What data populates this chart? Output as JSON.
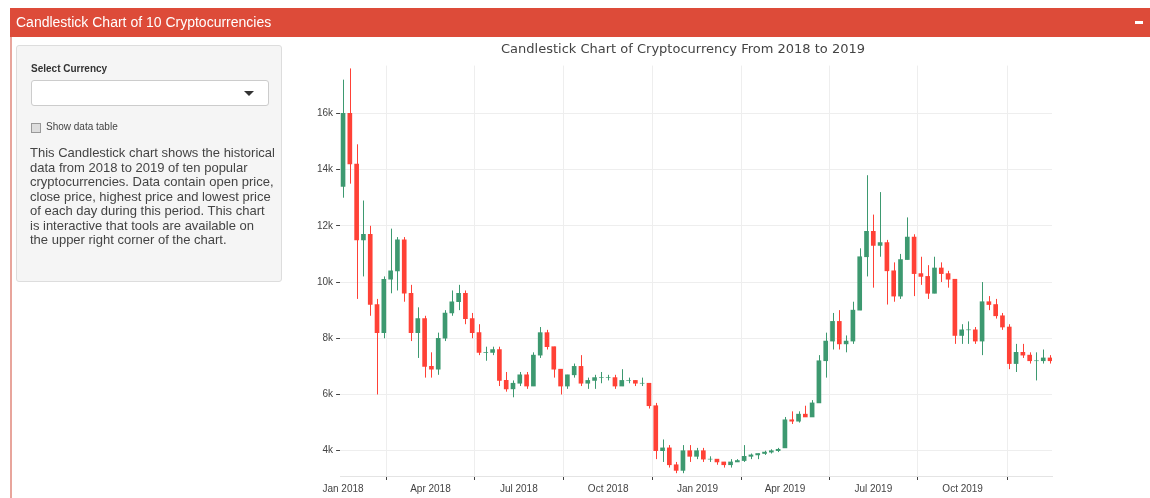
{
  "chart_data": {
    "type": "candlestick",
    "title": "Candlestick Chart of Cryptocurrency From 2018 to 2019",
    "annotations": [
      "Candlestick Chart of 10 Cryptocurrencies",
      "Select Currency",
      "Show data table",
      "This Candlestick chart shows the historical data from 2018 to 2019 of ten popular cryptocurrencies. Data contain open price, close price, highest price and lowest price of each day during this period. This chart is interactive that tools are available on the upper right corner of the chart."
    ],
    "x": [
      "2018-01-01",
      "2018-01-08",
      "2018-01-15",
      "2018-01-22",
      "2018-01-29",
      "2018-02-05",
      "2018-02-12",
      "2018-02-19",
      "2018-02-26",
      "2018-03-05",
      "2018-03-12",
      "2018-03-19",
      "2018-03-26",
      "2018-04-02",
      "2018-04-09",
      "2018-04-16",
      "2018-04-23",
      "2018-04-30",
      "2018-05-07",
      "2018-05-14",
      "2018-05-21",
      "2018-05-28",
      "2018-06-04",
      "2018-06-11",
      "2018-06-18",
      "2018-06-25",
      "2018-07-02",
      "2018-07-09",
      "2018-07-16",
      "2018-07-23",
      "2018-07-30",
      "2018-08-06",
      "2018-08-13",
      "2018-08-20",
      "2018-08-27",
      "2018-09-03",
      "2018-09-10",
      "2018-09-17",
      "2018-09-24",
      "2018-10-01",
      "2018-10-08",
      "2018-10-15",
      "2018-10-22",
      "2018-10-29",
      "2018-11-05",
      "2018-11-12",
      "2018-11-19",
      "2018-11-26",
      "2018-12-03",
      "2018-12-10",
      "2018-12-17",
      "2018-12-24",
      "2018-12-31",
      "2019-01-07",
      "2019-01-14",
      "2019-01-21",
      "2019-01-28",
      "2019-02-04",
      "2019-02-11",
      "2019-02-18",
      "2019-02-25",
      "2019-03-04",
      "2019-03-11",
      "2019-03-18",
      "2019-03-25",
      "2019-04-01",
      "2019-04-08",
      "2019-04-15",
      "2019-04-22",
      "2019-04-29",
      "2019-05-06",
      "2019-05-13",
      "2019-05-20",
      "2019-05-27",
      "2019-06-03",
      "2019-06-10",
      "2019-06-17",
      "2019-06-24",
      "2019-07-01",
      "2019-07-08",
      "2019-07-15",
      "2019-07-22",
      "2019-07-29",
      "2019-08-05",
      "2019-08-12",
      "2019-08-19",
      "2019-08-26",
      "2019-09-02",
      "2019-09-09",
      "2019-09-16",
      "2019-09-23",
      "2019-09-30",
      "2019-10-07",
      "2019-10-14",
      "2019-10-21",
      "2019-10-28",
      "2019-11-04",
      "2019-11-11",
      "2019-11-18",
      "2019-11-25",
      "2019-12-02",
      "2019-12-09",
      "2019-12-16",
      "2019-12-23",
      "2019-12-30"
    ],
    "ohlc": [
      [
        13400,
        17200,
        13000,
        16000
      ],
      [
        16000,
        17600,
        13500,
        14200
      ],
      [
        14200,
        14900,
        9400,
        11500
      ],
      [
        11500,
        12900,
        10200,
        11700
      ],
      [
        11700,
        12000,
        8800,
        9200
      ],
      [
        9200,
        9400,
        6000,
        8200
      ],
      [
        8200,
        10200,
        8000,
        10100
      ],
      [
        10100,
        11900,
        9600,
        10400
      ],
      [
        10400,
        11600,
        9700,
        11500
      ],
      [
        11500,
        11600,
        9300,
        9600
      ],
      [
        9600,
        9900,
        7900,
        8200
      ],
      [
        8200,
        9100,
        7300,
        8700
      ],
      [
        8700,
        8800,
        6600,
        7000
      ],
      [
        7000,
        7500,
        6600,
        6900
      ],
      [
        6900,
        8200,
        6700,
        8000
      ],
      [
        8000,
        9000,
        7900,
        8900
      ],
      [
        8900,
        9700,
        8800,
        9300
      ],
      [
        9300,
        9900,
        9000,
        9600
      ],
      [
        9600,
        9700,
        8500,
        8700
      ],
      [
        8700,
        8900,
        8000,
        8200
      ],
      [
        8200,
        8500,
        7400,
        7500
      ],
      [
        7500,
        7700,
        7200,
        7500
      ],
      [
        7500,
        7700,
        7400,
        7600
      ],
      [
        7600,
        7700,
        6300,
        6500
      ],
      [
        6500,
        6800,
        6100,
        6200
      ],
      [
        6200,
        6500,
        5900,
        6400
      ],
      [
        6400,
        6800,
        6300,
        6700
      ],
      [
        6700,
        6800,
        6200,
        6300
      ],
      [
        6300,
        7500,
        6300,
        7400
      ],
      [
        7400,
        8400,
        7300,
        8200
      ],
      [
        8200,
        8300,
        7600,
        7700
      ],
      [
        7700,
        7700,
        6600,
        6900
      ],
      [
        6900,
        6900,
        6000,
        6300
      ],
      [
        6300,
        6700,
        6200,
        6700
      ],
      [
        6700,
        7100,
        6600,
        7000
      ],
      [
        7000,
        7400,
        6300,
        6400
      ],
      [
        6400,
        6600,
        6200,
        6500
      ],
      [
        6500,
        6700,
        6200,
        6600
      ],
      [
        6600,
        6800,
        6400,
        6600
      ],
      [
        6600,
        6700,
        6500,
        6600
      ],
      [
        6600,
        6700,
        6200,
        6300
      ],
      [
        6300,
        6900,
        6300,
        6500
      ],
      [
        6500,
        6600,
        6400,
        6500
      ],
      [
        6500,
        6500,
        6300,
        6400
      ],
      [
        6400,
        6600,
        6300,
        6400
      ],
      [
        6400,
        6400,
        5500,
        5600
      ],
      [
        5600,
        5700,
        3700,
        4000
      ],
      [
        4000,
        4400,
        3600,
        4100
      ],
      [
        4100,
        4200,
        3400,
        3500
      ],
      [
        3500,
        3600,
        3200,
        3300
      ],
      [
        3300,
        4200,
        3200,
        4000
      ],
      [
        4000,
        4200,
        3600,
        3800
      ],
      [
        3800,
        4100,
        3700,
        4000
      ],
      [
        4000,
        4100,
        3600,
        3700
      ],
      [
        3700,
        3800,
        3600,
        3700
      ],
      [
        3700,
        3700,
        3500,
        3600
      ],
      [
        3600,
        3600,
        3400,
        3500
      ],
      [
        3500,
        3700,
        3400,
        3600
      ],
      [
        3600,
        3700,
        3600,
        3650
      ],
      [
        3650,
        4200,
        3600,
        3800
      ],
      [
        3800,
        3900,
        3700,
        3850
      ],
      [
        3850,
        3900,
        3700,
        3900
      ],
      [
        3900,
        4000,
        3850,
        3950
      ],
      [
        3950,
        4050,
        3900,
        4000
      ],
      [
        4000,
        4100,
        3950,
        4050
      ],
      [
        4100,
        5200,
        4100,
        5100
      ],
      [
        5100,
        5400,
        4950,
        5050
      ],
      [
        5050,
        5400,
        5000,
        5300
      ],
      [
        5300,
        5600,
        5200,
        5200
      ],
      [
        5200,
        5800,
        5200,
        5700
      ],
      [
        5700,
        7400,
        5700,
        7200
      ],
      [
        7200,
        8200,
        6600,
        7900
      ],
      [
        7900,
        8900,
        7600,
        8600
      ],
      [
        8600,
        9000,
        7600,
        7800
      ],
      [
        7800,
        8100,
        7500,
        7900
      ],
      [
        7900,
        9300,
        7800,
        9000
      ],
      [
        9000,
        11200,
        9000,
        10900
      ],
      [
        10900,
        13800,
        10200,
        11800
      ],
      [
        11800,
        12400,
        9800,
        11300
      ],
      [
        11300,
        13200,
        10900,
        11400
      ],
      [
        11400,
        11500,
        9200,
        10400
      ],
      [
        10400,
        10700,
        9300,
        9500
      ],
      [
        9500,
        11000,
        9400,
        10800
      ],
      [
        10800,
        12300,
        10800,
        11600
      ],
      [
        11600,
        11700,
        9500,
        10300
      ],
      [
        10300,
        10900,
        9900,
        10200
      ],
      [
        10200,
        10600,
        9400,
        9600
      ],
      [
        9600,
        10900,
        9600,
        10500
      ],
      [
        10500,
        10700,
        10000,
        10300
      ],
      [
        10300,
        10400,
        9800,
        10100
      ],
      [
        10100,
        10100,
        7800,
        8100
      ],
      [
        8100,
        8500,
        7800,
        8300
      ],
      [
        8300,
        8600,
        7800,
        8300
      ],
      [
        8300,
        8400,
        7800,
        7900
      ],
      [
        7900,
        10000,
        7400,
        9300
      ],
      [
        9300,
        9500,
        9000,
        9200
      ],
      [
        9200,
        9400,
        8700,
        8800
      ],
      [
        8800,
        8900,
        8300,
        8400
      ],
      [
        8400,
        8500,
        6900,
        7100
      ],
      [
        7100,
        7800,
        6800,
        7500
      ],
      [
        7500,
        7800,
        7300,
        7400
      ],
      [
        7400,
        7500,
        7100,
        7200
      ],
      [
        7200,
        7500,
        6500,
        7200
      ],
      [
        7200,
        7600,
        7100,
        7300
      ],
      [
        7300,
        7400,
        7100,
        7200
      ]
    ],
    "xticks": [
      {
        "value": "2018-01-01",
        "label": "Jan 2018"
      },
      {
        "value": "2018-04-01",
        "label": "Apr 2018"
      },
      {
        "value": "2018-07-01",
        "label": "Jul 2018"
      },
      {
        "value": "2018-10-01",
        "label": "Oct 2018"
      },
      {
        "value": "2019-01-01",
        "label": "Jan 2019"
      },
      {
        "value": "2019-04-01",
        "label": "Apr 2019"
      },
      {
        "value": "2019-07-01",
        "label": "Jul 2019"
      },
      {
        "value": "2019-10-01",
        "label": "Oct 2019"
      }
    ],
    "xlim": [
      "2017-12-29",
      "2020-01-01"
    ],
    "ylim": [
      3100,
      17700
    ],
    "yticks": [
      {
        "value": 4000,
        "label": "4k"
      },
      {
        "value": 6000,
        "label": "6k"
      },
      {
        "value": 8000,
        "label": "8k"
      },
      {
        "value": 10000,
        "label": "10k"
      },
      {
        "value": 12000,
        "label": "12k"
      },
      {
        "value": 14000,
        "label": "14k"
      },
      {
        "value": 16000,
        "label": "16k"
      }
    ],
    "grid": true
  }
}
